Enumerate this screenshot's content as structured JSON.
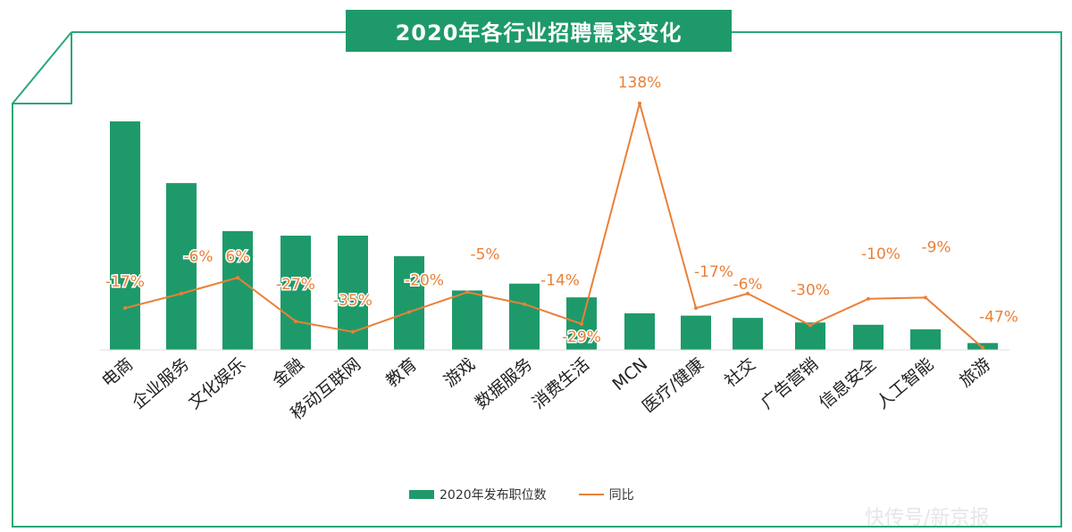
{
  "title": "2020年各行业招聘需求变化",
  "legend": {
    "bar_label": "2020年发布职位数",
    "line_label": "同比"
  },
  "watermark": "快传号/新京报",
  "colors": {
    "bar": "#1e9a6a",
    "line": "#ea8037",
    "frame": "#2aa876"
  },
  "chart_data": {
    "type": "bar",
    "categories": [
      "电商",
      "企业服务",
      "文化娱乐",
      "金融",
      "移动互联网",
      "教育",
      "游戏",
      "数据服务",
      "消费生活",
      "MCN",
      "医疗/健康",
      "社交",
      "广告营销",
      "信息安全",
      "人工智能",
      "旅游"
    ],
    "series": [
      {
        "name": "2020年发布职位数",
        "type": "bar",
        "values": [
          100,
          73,
          52,
          50,
          50,
          41,
          26,
          29,
          23,
          16,
          15,
          14,
          12,
          11,
          9,
          3
        ]
      },
      {
        "name": "同比",
        "type": "line",
        "values": [
          -17,
          -6,
          6,
          -27,
          -35,
          -20,
          -5,
          -14,
          -29,
          138,
          -17,
          -6,
          -30,
          -10,
          -9,
          -47
        ],
        "labels": [
          "-17%",
          "-6%",
          "6%",
          "-27%",
          "-35%",
          "-20%",
          "-5%",
          "-14%",
          "-29%",
          "138%",
          "-17%",
          "-6%",
          "-30%",
          "-10%",
          "-9%",
          "-47%"
        ]
      }
    ]
  }
}
